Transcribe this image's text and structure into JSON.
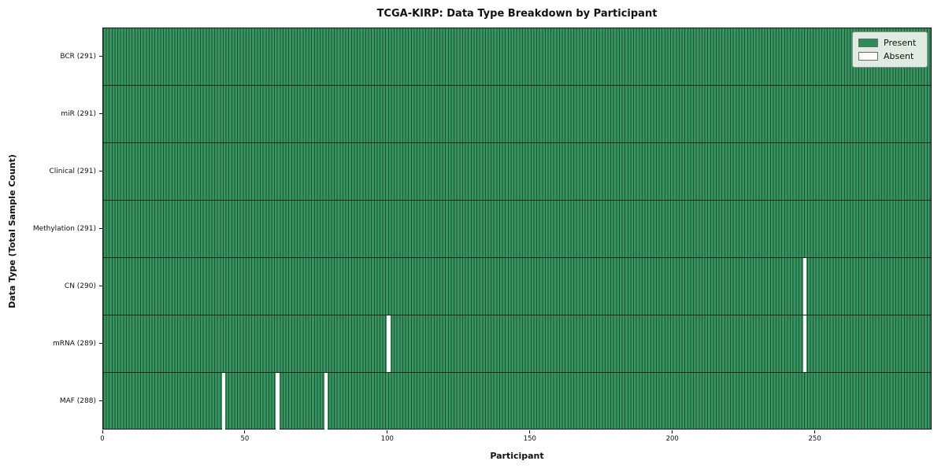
{
  "chart_data": {
    "type": "heatmap",
    "title": "TCGA-KIRP: Data Type Breakdown by Participant",
    "xlabel": "Participant",
    "ylabel": "Data Type (Total Sample Count)",
    "x_range": [
      0,
      291
    ],
    "x_ticks": [
      0,
      50,
      100,
      150,
      200,
      250
    ],
    "n_participants": 291,
    "grid": false,
    "legend_position": "upper right",
    "rows": [
      {
        "label": "BCR (291)",
        "data_type": "BCR",
        "present_count": 291,
        "absent_participants": []
      },
      {
        "label": "miR (291)",
        "data_type": "miR",
        "present_count": 291,
        "absent_participants": []
      },
      {
        "label": "Clinical (291)",
        "data_type": "Clinical",
        "present_count": 291,
        "absent_participants": []
      },
      {
        "label": "Methylation (291)",
        "data_type": "Methylation",
        "present_count": 291,
        "absent_participants": []
      },
      {
        "label": "CN (290)",
        "data_type": "CN",
        "present_count": 290,
        "absent_participants": [
          246
        ]
      },
      {
        "label": "mRNA (289)",
        "data_type": "mRNA",
        "present_count": 289,
        "absent_participants": [
          100,
          246
        ]
      },
      {
        "label": "MAF (288)",
        "data_type": "MAF",
        "present_count": 288,
        "absent_participants": [
          42,
          61,
          78
        ]
      }
    ],
    "legend": [
      {
        "label": "Present",
        "color": "#2e8b57"
      },
      {
        "label": "Absent",
        "color": "#ffffff"
      }
    ],
    "colors": {
      "present": "#2e8b57",
      "absent": "#ffffff",
      "cell_edge": "#245138",
      "plot_border": "#0d2318"
    }
  }
}
